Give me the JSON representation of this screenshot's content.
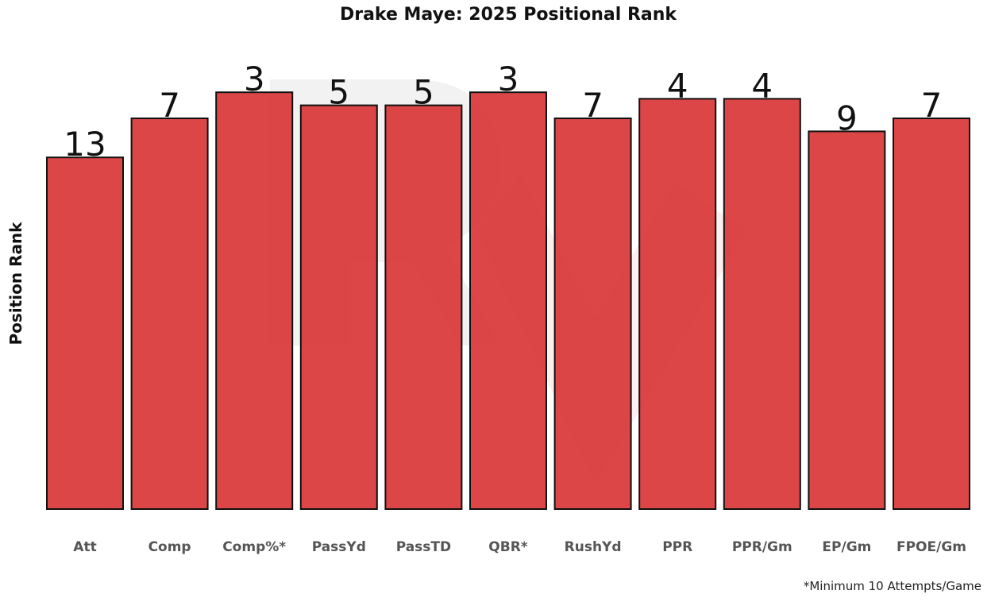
{
  "chart_data": {
    "type": "bar",
    "title": "Drake Maye: 2025 Positional Rank",
    "xlabel": "",
    "ylabel": "Position Rank",
    "y_inverted": true,
    "ylim": [
      67,
      0
    ],
    "grid": false,
    "categories": [
      "Att",
      "Comp",
      "Comp%*",
      "PassYd",
      "PassTD",
      "QBR*",
      "RushYd",
      "PPR",
      "PPR/Gm",
      "EP/Gm",
      "FPOE/Gm"
    ],
    "values": [
      13,
      7,
      3,
      5,
      5,
      3,
      7,
      4,
      4,
      9,
      7
    ],
    "bar_color": "#d93636",
    "footnote": "*Minimum 10 Attempts/Game"
  }
}
